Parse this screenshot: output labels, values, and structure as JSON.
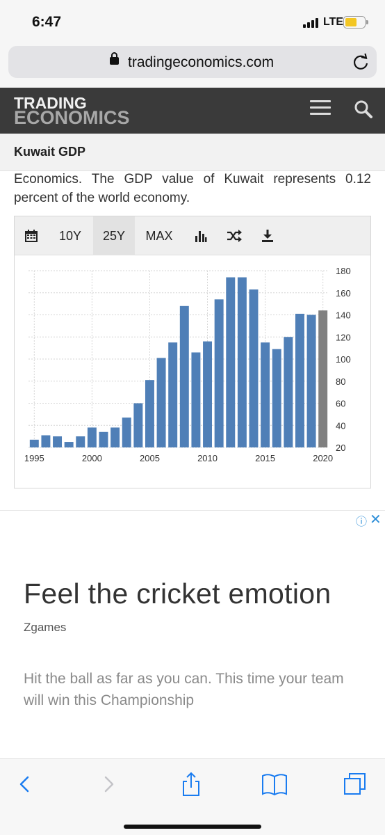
{
  "status": {
    "time": "6:47",
    "network": "LTE",
    "battery_color": "#f3c623"
  },
  "browser": {
    "url": "tradingeconomics.com",
    "icons": [
      "lock-icon",
      "reload-icon"
    ]
  },
  "site": {
    "logo_line1": "TRADING",
    "logo_line2": "ECONOMICS",
    "icons": [
      "hamburger-menu-icon",
      "search-icon"
    ]
  },
  "page": {
    "title": "Kuwait GDP",
    "intro": "Economics. The GDP value of Kuwait represents 0.12 percent of the world economy."
  },
  "chart_toolbar": {
    "calendar_icon": "calendar-icon",
    "range_10y": "10Y",
    "range_25y": "25Y",
    "range_max": "MAX",
    "active_range": "25Y",
    "chart_type_icon": "bar-chart-icon",
    "compare_icon": "shuffle-icon",
    "download_icon": "download-icon"
  },
  "chart_data": {
    "type": "bar",
    "title": "",
    "xlabel": "",
    "ylabel": "",
    "x": [
      1995,
      1996,
      1997,
      1998,
      1999,
      2000,
      2001,
      2002,
      2003,
      2004,
      2005,
      2006,
      2007,
      2008,
      2009,
      2010,
      2011,
      2012,
      2013,
      2014,
      2015,
      2016,
      2017,
      2018,
      2019,
      2020
    ],
    "values": [
      27,
      31,
      30,
      25,
      30,
      38,
      34,
      38,
      47,
      60,
      81,
      101,
      115,
      148,
      106,
      116,
      154,
      174,
      174,
      163,
      115,
      109,
      120,
      141,
      140,
      144
    ],
    "x_tick_labels": [
      "1995",
      "2000",
      "2005",
      "2010",
      "2015",
      "2020"
    ],
    "y_tick_labels": [
      "180",
      "160",
      "140",
      "120",
      "100",
      "80",
      "60",
      "40",
      "20"
    ],
    "ylim": [
      20,
      180
    ],
    "y_axis_side": "right",
    "grid": true,
    "bar_color": "#4f7fb7",
    "highlight_last_bar_color": "#808080"
  },
  "ad": {
    "headline": "Feel the cricket emotion",
    "advertiser": "Zgames",
    "description": "Hit the ball as far as you can. This time your team will win this Championship",
    "info_icon": "ⓘ",
    "close_icon": "✕"
  },
  "safari_toolbar": {
    "icons": [
      "back-icon",
      "forward-icon",
      "share-icon",
      "bookmarks-icon",
      "tabs-icon"
    ],
    "accent_color": "#1a7cf0"
  }
}
